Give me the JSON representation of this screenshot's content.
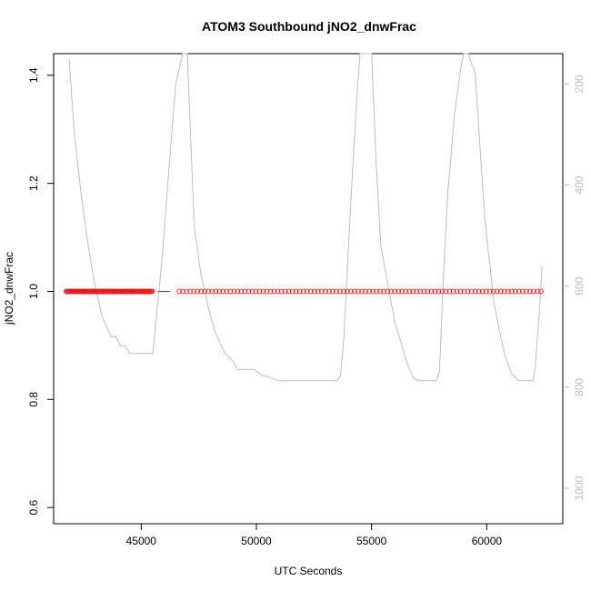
{
  "chart_data": {
    "type": "scatter",
    "title": "ATOM3 Southbound jNO2_dnwFrac",
    "xlabel": "UTC Seconds",
    "ylabel": "jNO2_dnwFrac",
    "xlim": [
      41200,
      63300
    ],
    "ylim": [
      0.57,
      1.44
    ],
    "y2lim": [
      1070,
      140
    ],
    "x_ticks": [
      45000,
      50000,
      55000,
      60000
    ],
    "x_tick_labels": [
      "45000",
      "50000",
      "55000",
      "60000"
    ],
    "y_ticks": [
      0.6,
      0.8,
      1.0,
      1.2,
      1.4
    ],
    "y_tick_labels": [
      "0.6",
      "0.8",
      "1.0",
      "1.2",
      "1.4"
    ],
    "y2_ticks": [
      200,
      400,
      600,
      800,
      1000
    ],
    "y2_tick_labels": [
      "200",
      "400",
      "600",
      "800",
      "1000"
    ],
    "grid": false,
    "series": [
      {
        "kind": "points",
        "color": "#e31a1c",
        "y": 1.0,
        "segments": [
          [
            41750,
            45480,
            100
          ],
          [
            46650,
            62350,
            100
          ]
        ],
        "gap_line": [
          45720,
          46250
        ]
      },
      {
        "kind": "line",
        "axis": "right",
        "color": "#bebebe",
        "x": [
          41870,
          42100,
          42400,
          42700,
          43000,
          43300,
          43600,
          43700,
          43900,
          44100,
          44300,
          44500,
          45500,
          45900,
          46200,
          46500,
          46800,
          47000,
          47300,
          47600,
          47900,
          48200,
          48600,
          49000,
          49200,
          49500,
          49900,
          50300,
          50400,
          51000,
          52000,
          53000,
          53500,
          53650,
          53800,
          54000,
          54200,
          54400,
          54500,
          55000,
          55200,
          55400,
          55800,
          56000,
          56200,
          56400,
          56600,
          56800,
          57000,
          57800,
          57950,
          58100,
          58300,
          58600,
          58900,
          59000,
          59200,
          59500,
          59900,
          60300,
          60600,
          60800,
          61100,
          61400,
          62000,
          62100,
          62300,
          62400
        ],
        "y": [
          150,
          300,
          420,
          520,
          600,
          660,
          690,
          700,
          700,
          718,
          718,
          733,
          733,
          550,
          370,
          200,
          130,
          130,
          480,
          580,
          640,
          690,
          730,
          750,
          765,
          765,
          765,
          778,
          778,
          787,
          787,
          787,
          787,
          778,
          700,
          520,
          350,
          200,
          140,
          140,
          360,
          520,
          620,
          670,
          700,
          730,
          760,
          780,
          787,
          787,
          770,
          600,
          420,
          260,
          160,
          140,
          140,
          180,
          460,
          630,
          700,
          740,
          775,
          787,
          787,
          760,
          640,
          560
        ]
      }
    ]
  }
}
